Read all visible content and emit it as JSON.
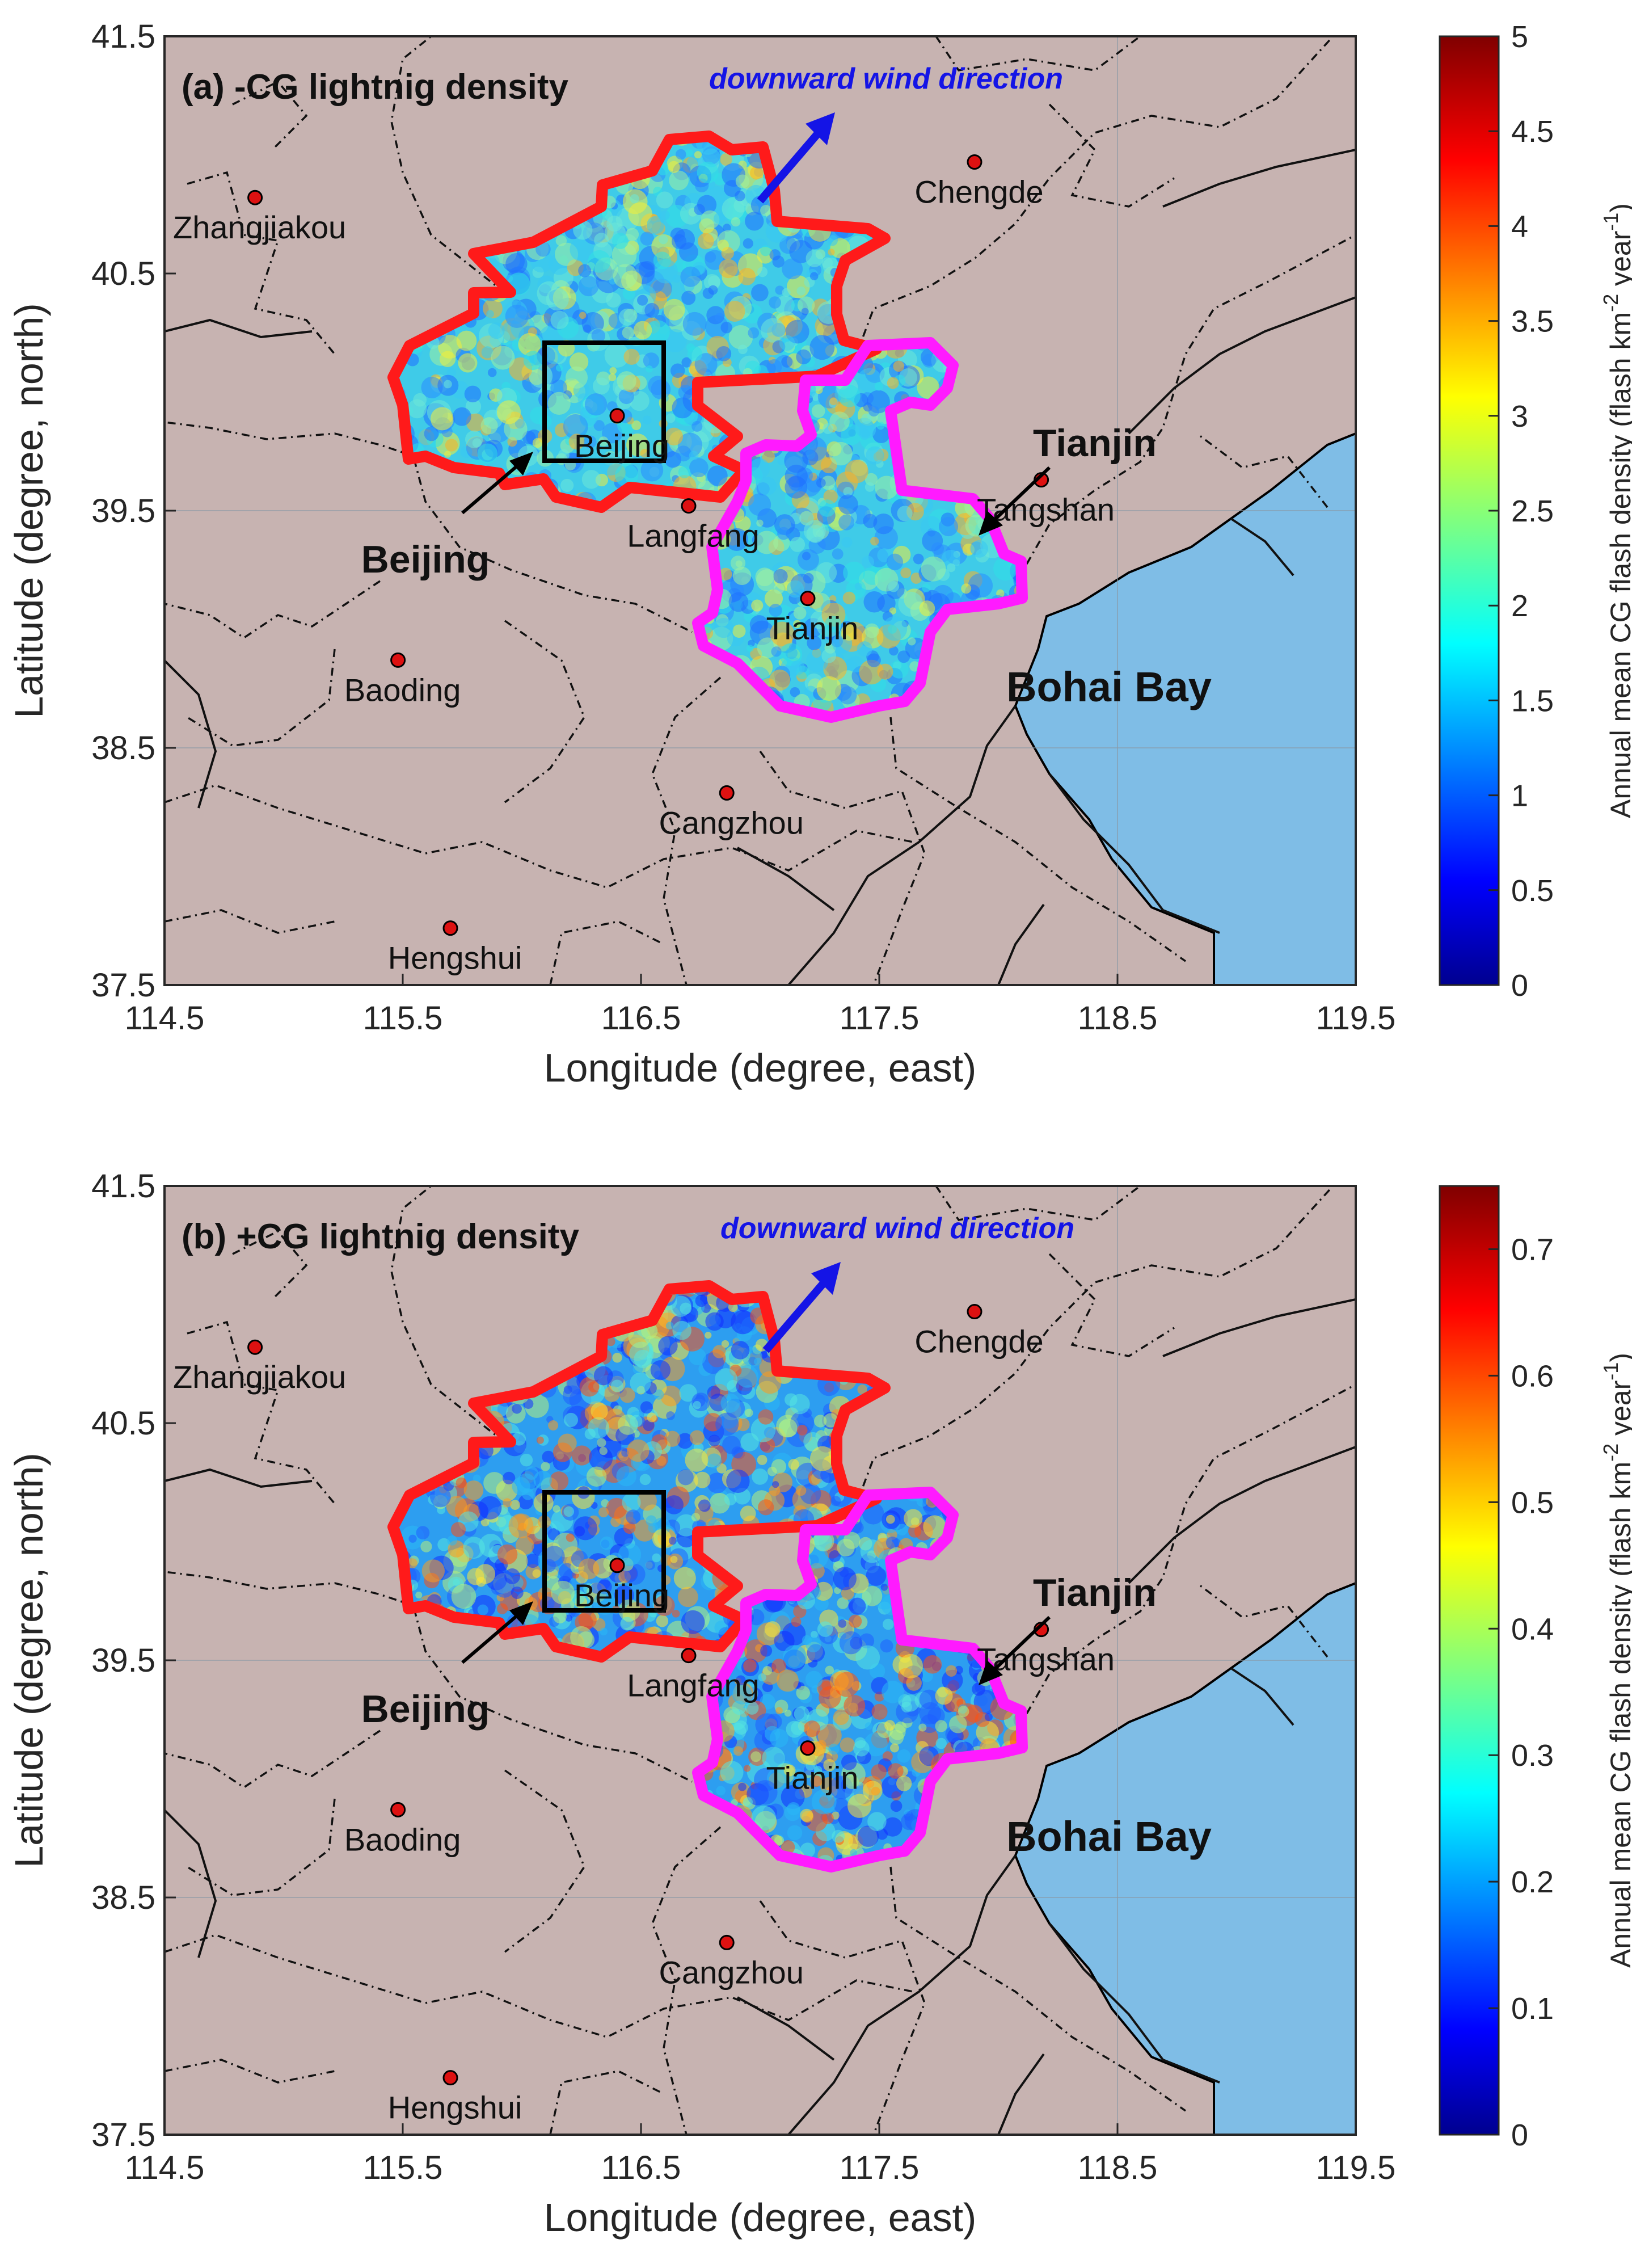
{
  "xaxis": {
    "label": "Longitude (degree, east)",
    "ticks": [
      "114.5",
      "115.5",
      "116.5",
      "117.5",
      "118.5",
      "119.5"
    ]
  },
  "yaxis": {
    "label": "Latitude (degree, north)",
    "ticks": [
      "37.5",
      "38.5",
      "39.5",
      "40.5",
      "41.5"
    ]
  },
  "colors": {
    "land": "#c7b3b1",
    "sea": "#7fbde6",
    "beijing_border": "#ff1a1a",
    "tianjin_border": "#ff1aff",
    "city_marker": "#dd1111",
    "wind_arrow": "#1414e6"
  },
  "map_labels": {
    "wind": "downward wind direction",
    "beijing_region": "Beijing",
    "tianjin_region": "Tianjin",
    "bay": "Bohai Bay"
  },
  "cities": [
    {
      "name": "Zhangjiakou",
      "lon": 114.88,
      "lat": 40.82
    },
    {
      "name": "Chengde",
      "lon": 117.9,
      "lat": 40.97
    },
    {
      "name": "Beijing",
      "lon": 116.4,
      "lat": 39.9
    },
    {
      "name": "Langfang",
      "lon": 116.7,
      "lat": 39.52
    },
    {
      "name": "Tangshan",
      "lon": 118.18,
      "lat": 39.63
    },
    {
      "name": "Tianjin",
      "lon": 117.2,
      "lat": 39.13
    },
    {
      "name": "Baoding",
      "lon": 115.48,
      "lat": 38.87
    },
    {
      "name": "Cangzhou",
      "lon": 116.86,
      "lat": 38.31
    },
    {
      "name": "Hengshui",
      "lon": 115.7,
      "lat": 37.74
    }
  ],
  "colorbar_label": "Annual mean CG flash density (flash km",
  "colorbar_label_sup1": "-2",
  "colorbar_label_mid": " year",
  "colorbar_label_sup2": "-1",
  "colorbar_label_end": ")",
  "chart_data": [
    {
      "type": "heatmap",
      "title": "(a) -CG lightnig density",
      "xlim": [
        114.5,
        119.5
      ],
      "ylim": [
        37.5,
        41.5
      ],
      "colorbar": {
        "range": [
          0,
          5
        ],
        "ticks": [
          "0",
          "0.5",
          "1",
          "1.5",
          "2",
          "2.5",
          "3",
          "3.5",
          "4",
          "4.5",
          "5"
        ]
      }
    },
    {
      "type": "heatmap",
      "title": "(b) +CG lightnig density",
      "xlim": [
        114.5,
        119.5
      ],
      "ylim": [
        37.5,
        41.5
      ],
      "colorbar": {
        "range": [
          0,
          0.75
        ],
        "ticks": [
          "0",
          "0.1",
          "0.2",
          "0.3",
          "0.4",
          "0.5",
          "0.6",
          "0.7"
        ]
      }
    }
  ]
}
